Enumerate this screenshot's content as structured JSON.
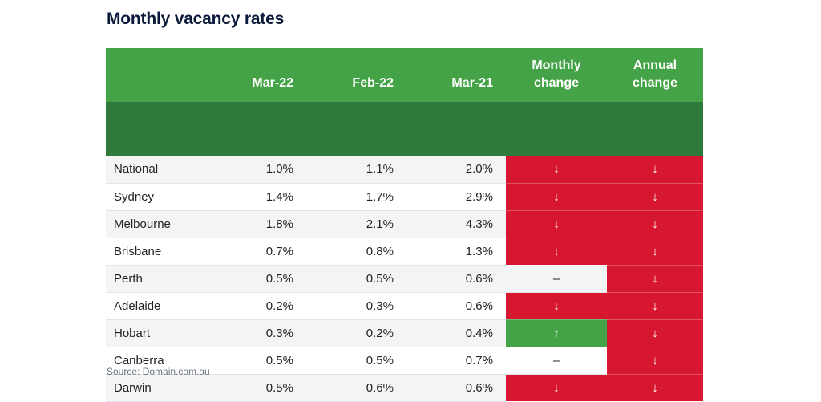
{
  "title": "Monthly vacancy rates",
  "source": "Source: Domain.com.au",
  "chart_data": {
    "type": "table",
    "columns": [
      "",
      "Mar-22",
      "Feb-22",
      "Mar-21",
      "Monthly change",
      "Annual change"
    ],
    "header_lines": {
      "monthly": [
        "Monthly",
        "change"
      ],
      "annual": [
        "Annual",
        "change"
      ]
    },
    "rows": [
      {
        "city": "National",
        "mar22": "1.0%",
        "feb22": "1.1%",
        "mar21": "2.0%",
        "monthly": "↓",
        "monthly_dir": "down",
        "annual": "↓",
        "annual_dir": "down"
      },
      {
        "city": "Sydney",
        "mar22": "1.4%",
        "feb22": "1.7%",
        "mar21": "2.9%",
        "monthly": "↓",
        "monthly_dir": "down",
        "annual": "↓",
        "annual_dir": "down"
      },
      {
        "city": "Melbourne",
        "mar22": "1.8%",
        "feb22": "2.1%",
        "mar21": "4.3%",
        "monthly": "↓",
        "monthly_dir": "down",
        "annual": "↓",
        "annual_dir": "down"
      },
      {
        "city": "Brisbane",
        "mar22": "0.7%",
        "feb22": "0.8%",
        "mar21": "1.3%",
        "monthly": "↓",
        "monthly_dir": "down",
        "annual": "↓",
        "annual_dir": "down"
      },
      {
        "city": "Perth",
        "mar22": "0.5%",
        "feb22": "0.5%",
        "mar21": "0.6%",
        "monthly": "–",
        "monthly_dir": "flat",
        "annual": "↓",
        "annual_dir": "down"
      },
      {
        "city": "Adelaide",
        "mar22": "0.2%",
        "feb22": "0.3%",
        "mar21": "0.6%",
        "monthly": "↓",
        "monthly_dir": "down",
        "annual": "↓",
        "annual_dir": "down"
      },
      {
        "city": "Hobart",
        "mar22": "0.3%",
        "feb22": "0.2%",
        "mar21": "0.4%",
        "monthly": "↑",
        "monthly_dir": "up",
        "annual": "↓",
        "annual_dir": "down"
      },
      {
        "city": "Canberra",
        "mar22": "0.5%",
        "feb22": "0.5%",
        "mar21": "0.7%",
        "monthly": "–",
        "monthly_dir": "flat",
        "annual": "↓",
        "annual_dir": "down"
      },
      {
        "city": "Darwin",
        "mar22": "0.5%",
        "feb22": "0.6%",
        "mar21": "0.6%",
        "monthly": "↓",
        "monthly_dir": "down",
        "annual": "↓",
        "annual_dir": "down"
      }
    ]
  },
  "colors": {
    "header_green": "#45a347",
    "down_red": "#d7172f",
    "up_green": "#45a347",
    "title_navy": "#0b1a3a"
  }
}
